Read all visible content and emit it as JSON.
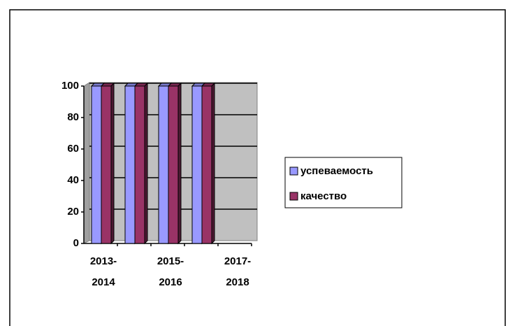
{
  "chart_data": {
    "type": "bar",
    "categories": [
      "2013-2014",
      null,
      "2015-2016",
      null,
      "2017-2018"
    ],
    "series": [
      {
        "name": "успеваемость",
        "color": "#9999ff",
        "values": [
          100,
          100,
          100,
          100,
          null
        ]
      },
      {
        "name": "качество",
        "color": "#993366",
        "values": [
          100,
          100,
          100,
          100,
          null
        ]
      }
    ],
    "ylim": [
      0,
      100
    ],
    "yticks": [
      0,
      20,
      40,
      60,
      80,
      100
    ],
    "grid": true,
    "legend": "right"
  }
}
